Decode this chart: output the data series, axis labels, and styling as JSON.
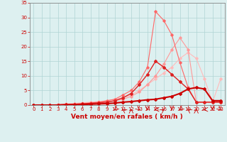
{
  "x": [
    0,
    1,
    2,
    3,
    4,
    5,
    6,
    7,
    8,
    9,
    10,
    11,
    12,
    13,
    14,
    15,
    16,
    17,
    18,
    19,
    20,
    21,
    22,
    23
  ],
  "series": [
    {
      "name": "line_lightest_pink_linear",
      "color": "#ffbbbb",
      "linewidth": 0.8,
      "marker": "D",
      "markersize": 1.8,
      "y": [
        0,
        0,
        0,
        0.2,
        0.4,
        0.6,
        0.8,
        1.0,
        1.2,
        1.5,
        2.0,
        2.5,
        3.5,
        5.0,
        7.0,
        9.0,
        11.0,
        13.0,
        16.0,
        18.0,
        16.0,
        9.0,
        1.0,
        9.0
      ]
    },
    {
      "name": "line_light_pink_linear",
      "color": "#ff9999",
      "linewidth": 0.8,
      "marker": "D",
      "markersize": 1.8,
      "y": [
        0,
        0,
        0,
        0.1,
        0.2,
        0.4,
        0.6,
        0.8,
        1.0,
        1.2,
        1.5,
        2.0,
        3.0,
        4.5,
        7.0,
        10.0,
        14.0,
        19.0,
        23.0,
        19.0,
        1.0,
        1.0,
        1.0,
        1.0
      ]
    },
    {
      "name": "line_salmon_peak",
      "color": "#ff6666",
      "linewidth": 0.8,
      "marker": "D",
      "markersize": 1.8,
      "y": [
        0,
        0,
        0,
        0.1,
        0.2,
        0.3,
        0.5,
        0.7,
        1.0,
        1.5,
        2.0,
        3.5,
        5.0,
        8.0,
        13.0,
        32.0,
        29.0,
        24.0,
        14.5,
        6.0,
        1.0,
        1.0,
        1.0,
        1.0
      ]
    },
    {
      "name": "line_medium_red",
      "color": "#dd2222",
      "linewidth": 1.0,
      "marker": "D",
      "markersize": 2.0,
      "y": [
        0,
        0,
        0,
        0.1,
        0.2,
        0.3,
        0.4,
        0.6,
        0.8,
        1.0,
        1.5,
        2.5,
        4.0,
        7.0,
        10.5,
        15.0,
        13.0,
        10.5,
        8.0,
        5.5,
        1.0,
        1.0,
        1.0,
        1.0
      ]
    },
    {
      "name": "line_dark_red_flat",
      "color": "#cc0000",
      "linewidth": 1.5,
      "marker": "D",
      "markersize": 2.0,
      "y": [
        0,
        0,
        0,
        0,
        0.1,
        0.1,
        0.2,
        0.3,
        0.4,
        0.5,
        0.7,
        1.0,
        1.2,
        1.5,
        1.8,
        2.0,
        2.5,
        3.0,
        4.0,
        5.5,
        6.0,
        5.5,
        1.5,
        1.5
      ]
    }
  ],
  "xlim": [
    -0.5,
    23.5
  ],
  "ylim": [
    0,
    35
  ],
  "yticks": [
    0,
    5,
    10,
    15,
    20,
    25,
    30,
    35
  ],
  "xticks": [
    0,
    1,
    2,
    3,
    4,
    5,
    6,
    7,
    8,
    9,
    10,
    11,
    12,
    13,
    14,
    15,
    16,
    17,
    18,
    19,
    20,
    21,
    22,
    23
  ],
  "xlabel": "Vent moyen/en rafales ( km/h )",
  "xlabel_color": "#cc0000",
  "tick_color": "#cc0000",
  "axis_color": "#888888",
  "grid_color": "#b0d4d4",
  "background_color": "#ddf0f0",
  "xlabel_fontsize": 6.5,
  "tick_fontsize": 5.0
}
